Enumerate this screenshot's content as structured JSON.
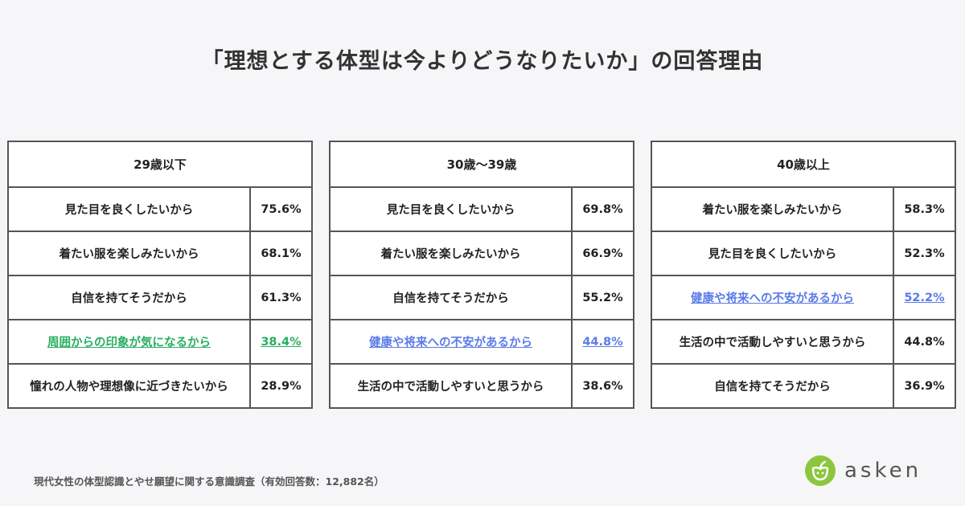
{
  "title": "「理想とする体型は今よりどうなりたいか」の回答理由",
  "colors": {
    "green_highlight": "#27ae60",
    "blue_highlight": "#5b7be8",
    "border": "#555555",
    "logo_green": "#8cc63f"
  },
  "chart_data": {
    "type": "table",
    "title": "「理想とする体型は今よりどうなりたいか」の回答理由",
    "groups": [
      {
        "header": "29歳以下",
        "rows": [
          {
            "reason": "見た目を良くしたいから",
            "value": "75.6%",
            "highlight": ""
          },
          {
            "reason": "着たい服を楽しみたいから",
            "value": "68.1%",
            "highlight": ""
          },
          {
            "reason": "自信を持てそうだから",
            "value": "61.3%",
            "highlight": ""
          },
          {
            "reason": "周囲からの印象が気になるから",
            "value": "38.4%",
            "highlight": "green"
          },
          {
            "reason": "憧れの人物や理想像に近づきたいから",
            "value": "28.9%",
            "highlight": ""
          }
        ]
      },
      {
        "header": "30歳〜39歳",
        "rows": [
          {
            "reason": "見た目を良くしたいから",
            "value": "69.8%",
            "highlight": ""
          },
          {
            "reason": "着たい服を楽しみたいから",
            "value": "66.9%",
            "highlight": ""
          },
          {
            "reason": "自信を持てそうだから",
            "value": "55.2%",
            "highlight": ""
          },
          {
            "reason": "健康や将来への不安があるから",
            "value": "44.8%",
            "highlight": "blue"
          },
          {
            "reason": "生活の中で活動しやすいと思うから",
            "value": "38.6%",
            "highlight": ""
          }
        ]
      },
      {
        "header": "40歳以上",
        "rows": [
          {
            "reason": "着たい服を楽しみたいから",
            "value": "58.3%",
            "highlight": ""
          },
          {
            "reason": "見た目を良くしたいから",
            "value": "52.3%",
            "highlight": ""
          },
          {
            "reason": "健康や将来への不安があるから",
            "value": "52.2%",
            "highlight": "blue"
          },
          {
            "reason": "生活の中で活動しやすいと思うから",
            "value": "44.8%",
            "highlight": ""
          },
          {
            "reason": "自信を持てそうだから",
            "value": "36.9%",
            "highlight": ""
          }
        ]
      }
    ]
  },
  "source": "現代女性の体型認識とやせ願望に関する意識調査（有効回答数：12,882名）",
  "logo": {
    "text": "asken",
    "icon": "asken-logo-icon"
  }
}
